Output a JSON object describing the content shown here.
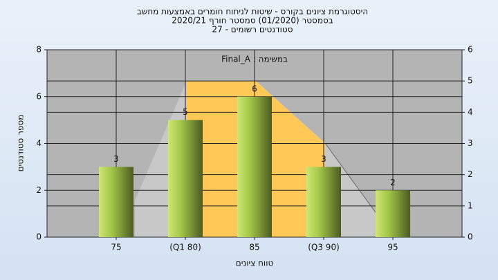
{
  "chart_data": {
    "type": "bar",
    "title": "היסטוגרמת ציונים בקורס - שיטות לניתוח חומרים באמצעות מחשב",
    "subtitle": "בסמסטר  (01/2020)  סמסטר חורף  2020/21",
    "subtitle2": "סטודנטים רשומים - 27",
    "annotation": "Final_A : במשימה",
    "ylabel": "מספר סטודנטים",
    "xlabel": "טווח ציונים",
    "categories": [
      "75",
      "(Q1 80)",
      "85",
      "(Q3 90)",
      "95"
    ],
    "values": [
      3,
      5,
      6,
      3,
      2
    ],
    "ylim": [
      0,
      8
    ],
    "yticks": [
      0,
      2,
      4,
      6,
      8
    ],
    "y2lim": [
      0,
      6
    ],
    "y2ticks": [
      0,
      1,
      2,
      3,
      4,
      5,
      6
    ],
    "grid": true
  }
}
